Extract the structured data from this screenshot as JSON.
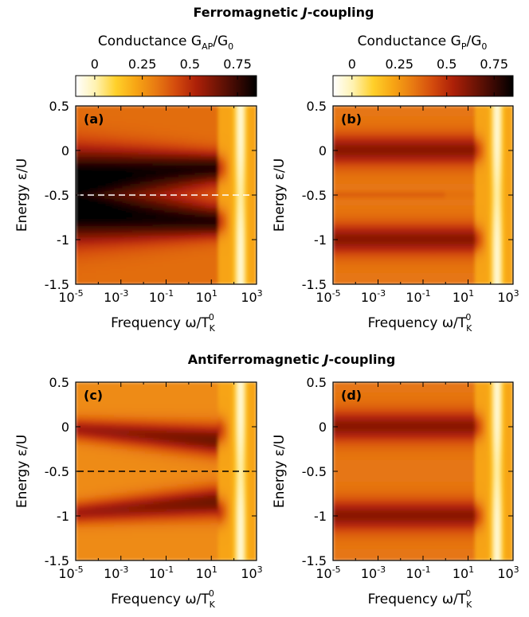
{
  "titles": {
    "top": "Ferromagnetic J-coupling",
    "top_main": "Ferromagnetic ",
    "top_italic": "J",
    "top_rest": "-coupling",
    "bottom_main": "Antiferromagnetic ",
    "bottom_italic": "J",
    "bottom_rest": "-coupling"
  },
  "colorbars": [
    {
      "label_main": "Conductance G",
      "label_sub": "AP",
      "label_end": "/G",
      "label_sub2": "0",
      "ticks": [
        "0",
        "0.25",
        "0.5",
        "0.75"
      ],
      "range": [
        -0.1,
        0.85
      ]
    },
    {
      "label_main": "Conductance G",
      "label_sub": "P",
      "label_end": "/G",
      "label_sub2": "0",
      "ticks": [
        "0",
        "0.25",
        "0.5",
        "0.75"
      ],
      "range": [
        -0.1,
        0.85
      ]
    }
  ],
  "colormap": [
    "#ffffff",
    "#fff2b0",
    "#ffd02a",
    "#f7a514",
    "#e87a12",
    "#d34a0d",
    "#ad2008",
    "#741505",
    "#3c0903",
    "#000000"
  ],
  "axes": {
    "xlabel_main": "Frequency ω/T",
    "xlabel_sub": "K",
    "xlabel_sup": "0",
    "ylabel": "Energy ε/U",
    "xticks": [
      {
        "base": "10",
        "exp": "-5"
      },
      {
        "base": "10",
        "exp": "-3"
      },
      {
        "base": "10",
        "exp": "-1"
      },
      {
        "base": "10",
        "exp": "1"
      },
      {
        "base": "10",
        "exp": "3"
      }
    ],
    "yticks": [
      "0.5",
      "0",
      "-0.5",
      "-1",
      "-1.5"
    ]
  },
  "chart_data": [
    {
      "type": "heatmap",
      "panel": "(a)",
      "quantity": "G_AP/G_0",
      "coupling": "ferromagnetic",
      "x_scale": "log",
      "xlim": [
        1e-05,
        1000.0
      ],
      "ylim": [
        -1.5,
        0.5
      ],
      "features": {
        "band_upper_center": -0.2,
        "band_lower_center": -0.8,
        "band_max": 0.78,
        "bands_merge_low_freq": true,
        "dashed_line_y": -0.5,
        "dashed_color": "#ffffff",
        "cutoff_freq": 20
      }
    },
    {
      "type": "heatmap",
      "panel": "(b)",
      "quantity": "G_P/G_0",
      "coupling": "ferromagnetic",
      "x_scale": "log",
      "xlim": [
        1e-05,
        1000.0
      ],
      "ylim": [
        -1.5,
        0.5
      ],
      "features": {
        "band_upper_center": 0.0,
        "band_lower_center": -1.0,
        "band_max": 0.6,
        "cutoff_freq": 20
      }
    },
    {
      "type": "heatmap",
      "panel": "(c)",
      "quantity": "G_AP/G_0",
      "coupling": "antiferromagnetic",
      "x_scale": "log",
      "xlim": [
        1e-05,
        1000.0
      ],
      "ylim": [
        -1.5,
        0.5
      ],
      "features": {
        "band_upper_center": -0.05,
        "band_lower_center": -0.95,
        "band_max": 0.62,
        "dashed_line_y": -0.5,
        "dashed_color": "#000000",
        "cutoff_freq": 20
      }
    },
    {
      "type": "heatmap",
      "panel": "(d)",
      "quantity": "G_P/G_0",
      "coupling": "antiferromagnetic",
      "x_scale": "log",
      "xlim": [
        1e-05,
        1000.0
      ],
      "ylim": [
        -1.5,
        0.5
      ],
      "features": {
        "band_upper_center": 0.0,
        "band_lower_center": -1.0,
        "band_max": 0.6,
        "cutoff_freq": 20
      }
    }
  ]
}
